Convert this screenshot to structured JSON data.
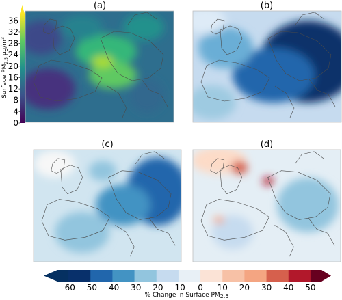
{
  "chart_data": [
    {
      "type": "heatmap",
      "panel": "(a)",
      "title": "(a)",
      "colorbar": {
        "label": "Surface PM2.5 μg/m3",
        "ticks": [
          0,
          4,
          8,
          12,
          16,
          20,
          24,
          28,
          32,
          36
        ],
        "range": [
          0,
          38
        ],
        "colormap": "viridis",
        "extend": "max"
      },
      "colors": [
        "#440154",
        "#3b528b",
        "#21918c",
        "#5ec962",
        "#fde725"
      ]
    },
    {
      "type": "heatmap",
      "panel": "(b)",
      "title": "(b)",
      "colormap": "RdBu_r",
      "range": [
        -65,
        55
      ]
    },
    {
      "type": "heatmap",
      "panel": "(c)",
      "title": "(c)",
      "colormap": "RdBu_r",
      "range": [
        -65,
        55
      ]
    },
    {
      "type": "heatmap",
      "panel": "(d)",
      "title": "(d)",
      "colormap": "RdBu_r",
      "range": [
        -65,
        55
      ]
    }
  ],
  "shared_colorbar": {
    "label_prefix": "% Change in Surface PM",
    "label_sub": "2.5",
    "ticks": [
      -60,
      -50,
      -40,
      -30,
      -20,
      -10,
      0,
      10,
      20,
      30,
      40,
      50
    ],
    "extend": "both",
    "colors": [
      "#08306b",
      "#2166ac",
      "#4393c3",
      "#92c5de",
      "#d1e5f0",
      "#f7f7f7",
      "#fddbc7",
      "#f4a582",
      "#d6604d",
      "#b2182b",
      "#67001f"
    ]
  },
  "labels": {
    "a": "(a)",
    "b": "(b)",
    "c": "(c)",
    "d": "(d)",
    "left_axis_prefix": "Surface PM",
    "left_axis_sub": "2.5",
    "left_axis_unit": " μg/m",
    "left_axis_sup": "3"
  }
}
